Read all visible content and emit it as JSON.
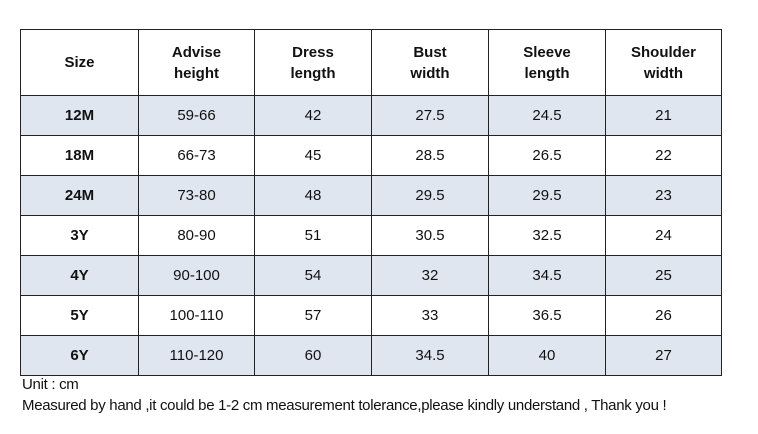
{
  "table": {
    "header": [
      [
        "Size"
      ],
      [
        "Advise",
        "height"
      ],
      [
        "Dress",
        "length"
      ],
      [
        "Bust",
        "width"
      ],
      [
        "Sleeve",
        "length"
      ],
      [
        "Shoulder",
        "width"
      ]
    ],
    "rows": [
      [
        "12M",
        "59-66",
        42,
        27.5,
        24.5,
        21
      ],
      [
        "18M",
        "66-73",
        45,
        28.5,
        26.5,
        22
      ],
      [
        "24M",
        "73-80",
        48,
        29.5,
        29.5,
        23
      ],
      [
        "3Y",
        "80-90",
        51,
        30.5,
        32.5,
        24
      ],
      [
        "4Y",
        "90-100",
        54,
        32,
        34.5,
        25
      ],
      [
        "5Y",
        "100-110",
        57,
        33,
        36.5,
        26
      ],
      [
        "6Y",
        "110-120",
        60,
        34.5,
        40,
        27
      ]
    ]
  },
  "notes": [
    "Unit : cm",
    "Measured by hand ,it could be 1-2 cm measurement tolerance,please kindly understand , Thank you !"
  ]
}
